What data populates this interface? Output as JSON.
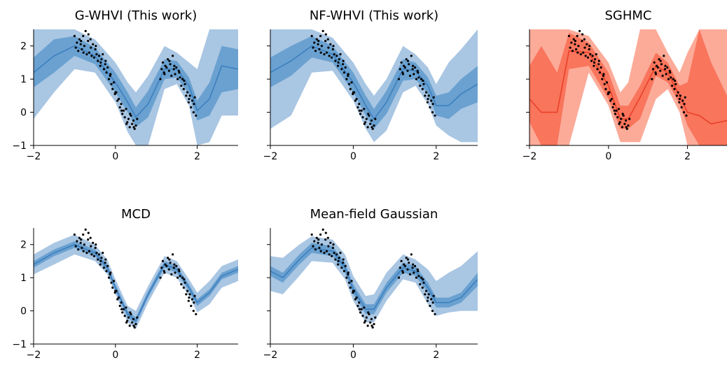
{
  "chart_data": [
    {
      "type": "line",
      "title": "G-WHVI (This work)",
      "colors": {
        "outer": "#a9c6e3",
        "inner": "#6aa1d0",
        "mean": "#3d7fbf"
      },
      "xlim": [
        -2,
        3
      ],
      "ylim": [
        -1,
        2.5
      ],
      "xticks": [
        -2,
        0,
        2
      ],
      "yticks": [
        -1,
        0,
        1,
        2
      ],
      "xtick_labels": [
        "−2",
        "0",
        "2"
      ],
      "ytick_labels": [
        "−1",
        "0",
        "1",
        "2"
      ],
      "show_yticklabels": true,
      "band": {
        "x": [
          -2.0,
          -1.5,
          -1.0,
          -0.5,
          0.0,
          0.3,
          0.5,
          0.8,
          1.2,
          1.5,
          1.8,
          2.0,
          2.3,
          2.6,
          3.0
        ],
        "mean": [
          1.2,
          1.7,
          2.0,
          1.7,
          0.9,
          0.3,
          -0.15,
          0.25,
          1.3,
          1.3,
          0.8,
          0.05,
          0.4,
          1.4,
          1.3
        ],
        "inner_lo": [
          0.75,
          1.2,
          1.7,
          1.45,
          0.6,
          0.0,
          -0.45,
          -0.15,
          1.0,
          1.05,
          0.55,
          -0.25,
          -0.1,
          0.6,
          0.7
        ],
        "inner_hi": [
          1.65,
          2.2,
          2.3,
          1.95,
          1.2,
          0.6,
          0.15,
          0.65,
          1.6,
          1.55,
          1.05,
          0.35,
          0.9,
          2.0,
          1.9
        ],
        "outer_lo": [
          -0.2,
          0.6,
          1.3,
          1.2,
          0.3,
          -0.6,
          -1.2,
          -1.2,
          0.7,
          0.85,
          0.2,
          -1.0,
          -0.9,
          -0.1,
          -0.1
        ],
        "outer_hi": [
          2.5,
          2.5,
          2.5,
          2.2,
          1.5,
          0.9,
          0.6,
          1.1,
          2.0,
          1.8,
          1.5,
          1.3,
          2.5,
          2.5,
          2.5
        ]
      },
      "points_label": "observations"
    },
    {
      "type": "line",
      "title": "NF-WHVI (This work)",
      "colors": {
        "outer": "#a9c6e3",
        "inner": "#6aa1d0",
        "mean": "#3d7fbf"
      },
      "xlim": [
        -2,
        3
      ],
      "ylim": [
        -1,
        2.5
      ],
      "xticks": [
        -2,
        0,
        2
      ],
      "yticks": [
        -1,
        0,
        1,
        2
      ],
      "xtick_labels": [
        "−2",
        "0",
        "2"
      ],
      "ytick_labels": [
        "−1",
        "0",
        "1",
        "2"
      ],
      "show_yticklabels": false,
      "band": {
        "x": [
          -2.0,
          -1.5,
          -1.0,
          -0.5,
          0.0,
          0.3,
          0.5,
          0.8,
          1.2,
          1.5,
          1.8,
          2.0,
          2.3,
          2.6,
          3.0
        ],
        "mean": [
          1.2,
          1.55,
          2.0,
          1.75,
          0.9,
          0.2,
          -0.2,
          0.3,
          1.3,
          1.25,
          0.8,
          0.2,
          0.2,
          0.55,
          0.85
        ],
        "inner_lo": [
          0.75,
          1.1,
          1.65,
          1.5,
          0.6,
          -0.1,
          -0.5,
          -0.05,
          0.95,
          1.0,
          0.55,
          -0.1,
          -0.2,
          0.1,
          0.3
        ],
        "inner_hi": [
          1.65,
          2.0,
          2.3,
          2.0,
          1.2,
          0.5,
          0.1,
          0.65,
          1.6,
          1.5,
          1.05,
          0.5,
          0.6,
          1.0,
          1.4
        ],
        "outer_lo": [
          -0.5,
          -0.1,
          1.2,
          1.25,
          0.35,
          -0.5,
          -0.9,
          -0.55,
          0.6,
          0.8,
          0.25,
          -0.4,
          -0.7,
          -0.9,
          -0.9
        ],
        "outer_hi": [
          2.5,
          2.5,
          2.5,
          2.25,
          1.5,
          0.85,
          0.5,
          1.0,
          2.0,
          1.75,
          1.35,
          0.85,
          1.5,
          1.9,
          2.5
        ]
      },
      "points_label": "observations"
    },
    {
      "type": "line",
      "title": "SGHMC",
      "colors": {
        "outer": "#fcab99",
        "inner": "#f9755c",
        "mean": "#e8412a"
      },
      "xlim": [
        -2,
        3
      ],
      "ylim": [
        -1,
        2.5
      ],
      "xticks": [
        -2,
        0,
        2
      ],
      "yticks": [
        -1,
        0,
        1,
        2
      ],
      "xtick_labels": [
        "−2",
        "0",
        "2"
      ],
      "ytick_labels": [
        "−1",
        "0",
        "1",
        "2"
      ],
      "show_yticklabels": false,
      "band": {
        "x": [
          -2.0,
          -1.7,
          -1.3,
          -1.0,
          -0.5,
          0.0,
          0.3,
          0.5,
          0.8,
          1.2,
          1.5,
          1.8,
          2.0,
          2.3,
          2.6,
          3.0
        ],
        "mean": [
          0.4,
          0.0,
          0.0,
          1.85,
          1.8,
          0.8,
          -0.2,
          -0.2,
          0.45,
          1.4,
          1.2,
          0.5,
          0.0,
          -0.1,
          -0.35,
          -0.25
        ],
        "inner_lo": [
          -0.3,
          -1.0,
          -1.0,
          1.3,
          1.4,
          0.4,
          -0.5,
          -0.5,
          -0.2,
          1.1,
          0.9,
          0.25,
          -0.4,
          -1.0,
          -1.0,
          -1.0
        ],
        "inner_hi": [
          1.4,
          2.0,
          1.2,
          2.4,
          2.1,
          1.2,
          0.2,
          0.2,
          0.8,
          1.8,
          1.5,
          0.8,
          0.9,
          2.5,
          1.5,
          0.5
        ],
        "outer_lo": [
          -1.0,
          -1.0,
          -1.0,
          -1.0,
          1.2,
          0.2,
          -0.9,
          -0.9,
          -0.9,
          0.4,
          0.7,
          0.0,
          -1.0,
          -1.0,
          -1.0,
          -1.0
        ],
        "outer_hi": [
          2.5,
          2.5,
          2.5,
          2.5,
          2.3,
          1.5,
          0.6,
          0.9,
          2.5,
          2.5,
          1.8,
          1.2,
          1.8,
          2.5,
          2.5,
          2.5
        ]
      },
      "points_label": "observations"
    },
    {
      "type": "line",
      "title": "MCD",
      "colors": {
        "outer": "#a9c6e3",
        "inner": "#6aa1d0",
        "mean": "#3d7fbf"
      },
      "xlim": [
        -2,
        3
      ],
      "ylim": [
        -1,
        2.5
      ],
      "xticks": [
        -2,
        0,
        2
      ],
      "yticks": [
        -1,
        0,
        1,
        2
      ],
      "xtick_labels": [
        "−2",
        "0",
        "2"
      ],
      "ytick_labels": [
        "−1",
        "0",
        "1",
        "2"
      ],
      "show_yticklabels": true,
      "band": {
        "x": [
          -2.0,
          -1.5,
          -1.0,
          -0.5,
          -0.2,
          0.0,
          0.3,
          0.5,
          0.8,
          1.2,
          1.5,
          1.8,
          2.0,
          2.3,
          2.6,
          3.0
        ],
        "mean": [
          1.4,
          1.75,
          2.0,
          1.75,
          1.3,
          0.7,
          -0.1,
          -0.3,
          0.5,
          1.4,
          1.25,
          0.7,
          0.25,
          0.55,
          1.05,
          1.25
        ],
        "inner_lo": [
          1.3,
          1.65,
          1.9,
          1.65,
          1.2,
          0.6,
          -0.2,
          -0.4,
          0.4,
          1.3,
          1.15,
          0.6,
          0.15,
          0.45,
          0.95,
          1.15
        ],
        "inner_hi": [
          1.5,
          1.85,
          2.1,
          1.85,
          1.4,
          0.8,
          0.0,
          -0.2,
          0.6,
          1.5,
          1.35,
          0.8,
          0.35,
          0.65,
          1.15,
          1.35
        ],
        "outer_lo": [
          1.1,
          1.4,
          1.7,
          1.5,
          1.1,
          0.5,
          -0.35,
          -0.55,
          0.25,
          1.15,
          1.0,
          0.45,
          -0.05,
          0.2,
          0.7,
          0.9
        ],
        "outer_hi": [
          1.7,
          2.05,
          2.3,
          2.0,
          1.55,
          0.95,
          0.15,
          0.0,
          0.75,
          1.65,
          1.5,
          0.95,
          0.55,
          0.9,
          1.35,
          1.55
        ]
      },
      "points_label": "observations"
    },
    {
      "type": "line",
      "title": "Mean-field Gaussian",
      "colors": {
        "outer": "#a9c6e3",
        "inner": "#6aa1d0",
        "mean": "#3d7fbf"
      },
      "xlim": [
        -2,
        3
      ],
      "ylim": [
        -1,
        2.5
      ],
      "xticks": [
        -2,
        0,
        2
      ],
      "yticks": [
        -1,
        0,
        1,
        2
      ],
      "xtick_labels": [
        "−2",
        "0",
        "2"
      ],
      "ytick_labels": [
        "−1",
        "0",
        "1",
        "2"
      ],
      "show_yticklabels": false,
      "band": {
        "x": [
          -2.0,
          -1.7,
          -1.3,
          -1.0,
          -0.5,
          -0.2,
          0.0,
          0.3,
          0.5,
          0.8,
          1.2,
          1.5,
          1.8,
          2.0,
          2.3,
          2.6,
          3.0
        ],
        "mean": [
          1.2,
          1.0,
          1.55,
          1.9,
          1.8,
          1.3,
          0.65,
          0.05,
          0.05,
          0.7,
          1.3,
          1.2,
          0.7,
          0.25,
          0.25,
          0.4,
          0.95
        ],
        "inner_lo": [
          1.05,
          0.85,
          1.4,
          1.75,
          1.65,
          1.15,
          0.5,
          -0.1,
          -0.1,
          0.55,
          1.15,
          1.05,
          0.55,
          0.1,
          0.1,
          0.25,
          0.75
        ],
        "inner_hi": [
          1.35,
          1.15,
          1.7,
          2.05,
          1.95,
          1.45,
          0.8,
          0.2,
          0.2,
          0.85,
          1.45,
          1.35,
          0.85,
          0.4,
          0.4,
          0.55,
          1.15
        ],
        "outer_lo": [
          0.6,
          0.5,
          1.05,
          1.5,
          1.45,
          0.95,
          0.3,
          -0.35,
          -0.35,
          0.3,
          0.95,
          0.85,
          0.2,
          -0.15,
          -0.05,
          0.0,
          0.0
        ],
        "outer_hi": [
          1.65,
          1.6,
          2.0,
          2.25,
          2.15,
          1.7,
          1.05,
          0.45,
          0.5,
          1.15,
          1.7,
          1.55,
          1.25,
          0.9,
          1.15,
          1.35,
          1.8
        ]
      },
      "points_label": "observations"
    }
  ],
  "observations": {
    "x": [
      -1.0,
      -0.97,
      -0.94,
      -0.91,
      -0.88,
      -0.85,
      -0.82,
      -0.79,
      -0.76,
      -0.73,
      -0.7,
      -0.67,
      -0.64,
      -0.61,
      -0.58,
      -0.55,
      -0.52,
      -0.49,
      -0.46,
      -0.43,
      -0.4,
      -0.37,
      -0.34,
      -0.31,
      -0.28,
      -0.25,
      -0.22,
      -0.19,
      -0.16,
      -0.13,
      -0.1,
      -0.07,
      -0.04,
      -0.01,
      0.02,
      0.05,
      0.08,
      0.11,
      0.14,
      0.17,
      0.2,
      0.23,
      0.26,
      0.29,
      0.32,
      0.35,
      0.38,
      0.41,
      0.44,
      0.47,
      0.5,
      0.53,
      1.1,
      1.13,
      1.16,
      1.19,
      1.22,
      1.25,
      1.28,
      1.31,
      1.34,
      1.37,
      1.4,
      1.43,
      1.46,
      1.49,
      1.52,
      1.55,
      1.58,
      1.61,
      1.64,
      1.67,
      1.7,
      1.73,
      1.76,
      1.79,
      1.82,
      1.85,
      1.88,
      1.91,
      1.94,
      1.97,
      -0.84,
      -0.78,
      -0.66,
      -0.6,
      -0.48,
      -0.36,
      -0.24,
      -0.12,
      0.0,
      0.15,
      0.27,
      0.36,
      0.45,
      1.2,
      1.32,
      1.44,
      1.56,
      1.68,
      1.8,
      1.92
    ],
    "y": [
      2.3,
      1.95,
      2.1,
      1.85,
      2.2,
      2.05,
      1.9,
      2.3,
      2.0,
      2.45,
      1.75,
      2.15,
      1.8,
      2.2,
      1.7,
      2.05,
      1.65,
      1.9,
      1.75,
      1.55,
      1.7,
      1.4,
      1.6,
      1.75,
      1.3,
      1.45,
      1.2,
      1.35,
      1.0,
      1.1,
      0.85,
      0.7,
      0.9,
      0.55,
      0.6,
      0.35,
      0.4,
      0.15,
      0.25,
      -0.05,
      0.05,
      -0.15,
      0.1,
      -0.3,
      -0.2,
      -0.45,
      -0.1,
      -0.35,
      -0.25,
      -0.5,
      -0.4,
      -0.2,
      1.0,
      1.3,
      1.5,
      1.2,
      1.4,
      1.35,
      1.6,
      1.25,
      1.45,
      1.1,
      1.7,
      1.3,
      1.15,
      1.35,
      1.0,
      1.25,
      1.05,
      0.8,
      1.0,
      0.7,
      0.85,
      0.5,
      0.6,
      0.3,
      0.5,
      0.15,
      0.35,
      0.0,
      0.45,
      -0.1,
      2.15,
      1.8,
      2.35,
      1.95,
      2.0,
      1.5,
      1.55,
      1.15,
      0.6,
      0.05,
      -0.35,
      -0.05,
      -0.45,
      1.15,
      1.55,
      1.4,
      1.2,
      0.95,
      0.4,
      0.25
    ]
  }
}
